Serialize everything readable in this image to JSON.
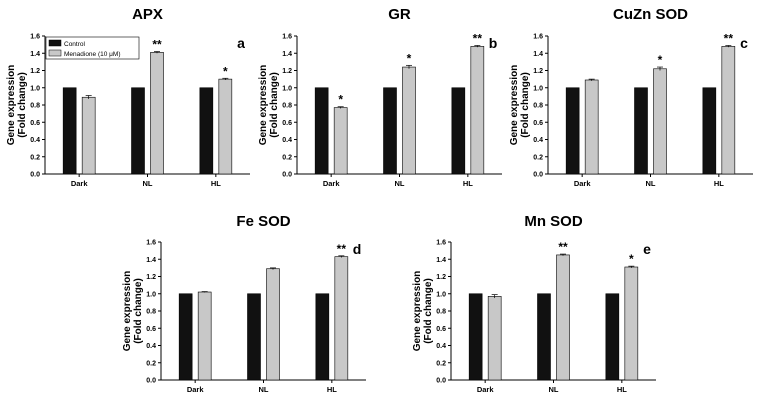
{
  "figure": {
    "ylabel_line1": "Gene expression",
    "ylabel_line2": "(Fold change)",
    "legend": {
      "control": "Control",
      "menadione": "Menadione (10 μM)"
    },
    "colors": {
      "control": "#111111",
      "menadione": "#c8c8c8",
      "axis": "#000000"
    }
  },
  "chart_data": [
    {
      "type": "bar",
      "title": "APX",
      "panel_label": "a",
      "categories": [
        "Dark",
        "NL",
        "HL"
      ],
      "series": [
        {
          "name": "Control",
          "values": [
            1.0,
            1.0,
            1.0
          ],
          "errors": [
            0,
            0,
            0
          ]
        },
        {
          "name": "Menadione (10 μM)",
          "values": [
            0.89,
            1.41,
            1.1
          ],
          "errors": [
            0.02,
            0.01,
            0.01
          ]
        }
      ],
      "significance": [
        "",
        "**",
        "*"
      ],
      "ylim": [
        0,
        1.6
      ],
      "yticks": [
        "0.0",
        "0.2",
        "0.4",
        "0.6",
        "0.8",
        "1.0",
        "1.2",
        "1.4",
        "1.6"
      ],
      "xlabel": "",
      "ylabel": "Gene expression (Fold change)",
      "legend": "top-left"
    },
    {
      "type": "bar",
      "title": "GR",
      "panel_label": "b",
      "categories": [
        "Dark",
        "NL",
        "HL"
      ],
      "series": [
        {
          "name": "Control",
          "values": [
            1.0,
            1.0,
            1.0
          ],
          "errors": [
            0,
            0,
            0
          ]
        },
        {
          "name": "Menadione (10 μM)",
          "values": [
            0.77,
            1.24,
            1.48
          ],
          "errors": [
            0.01,
            0.02,
            0.01
          ]
        }
      ],
      "significance": [
        "*",
        "*",
        "**"
      ],
      "ylim": [
        0,
        1.6
      ],
      "yticks": [
        "0.0",
        "0.2",
        "0.4",
        "0.6",
        "0.8",
        "1.0",
        "1.2",
        "1.4",
        "1.6"
      ],
      "xlabel": "",
      "ylabel": "Gene expression (Fold change)"
    },
    {
      "type": "bar",
      "title": "CuZn SOD",
      "panel_label": "c",
      "categories": [
        "Dark",
        "NL",
        "HL"
      ],
      "series": [
        {
          "name": "Control",
          "values": [
            1.0,
            1.0,
            1.0
          ],
          "errors": [
            0,
            0,
            0
          ]
        },
        {
          "name": "Menadione (10 μM)",
          "values": [
            1.09,
            1.22,
            1.48
          ],
          "errors": [
            0.01,
            0.02,
            0.01
          ]
        }
      ],
      "significance": [
        "",
        "*",
        "**"
      ],
      "ylim": [
        0,
        1.6
      ],
      "yticks": [
        "0.0",
        "0.2",
        "0.4",
        "0.6",
        "0.8",
        "1.0",
        "1.2",
        "1.4",
        "1.6"
      ],
      "xlabel": "",
      "ylabel": "Gene expression (Fold change)"
    },
    {
      "type": "bar",
      "title": "Fe SOD",
      "panel_label": "d",
      "categories": [
        "Dark",
        "NL",
        "HL"
      ],
      "series": [
        {
          "name": "Control",
          "values": [
            1.0,
            1.0,
            1.0
          ],
          "errors": [
            0,
            0,
            0
          ]
        },
        {
          "name": "Menadione (10 μM)",
          "values": [
            1.02,
            1.29,
            1.43
          ],
          "errors": [
            0.005,
            0.01,
            0.01
          ]
        }
      ],
      "significance": [
        "",
        "",
        "**"
      ],
      "ylim": [
        0,
        1.6
      ],
      "yticks": [
        "0.0",
        "0.2",
        "0.4",
        "0.6",
        "0.8",
        "1.0",
        "1.2",
        "1.4",
        "1.6"
      ],
      "xlabel": "",
      "ylabel": "Gene expression (Fold change)"
    },
    {
      "type": "bar",
      "title": "Mn SOD",
      "panel_label": "e",
      "categories": [
        "Dark",
        "NL",
        "HL"
      ],
      "series": [
        {
          "name": "Control",
          "values": [
            1.0,
            1.0,
            1.0
          ],
          "errors": [
            0,
            0,
            0
          ]
        },
        {
          "name": "Menadione (10 μM)",
          "values": [
            0.97,
            1.45,
            1.31
          ],
          "errors": [
            0.02,
            0.01,
            0.01
          ]
        }
      ],
      "significance": [
        "",
        "**",
        "*"
      ],
      "ylim": [
        0,
        1.6
      ],
      "yticks": [
        "0.0",
        "0.2",
        "0.4",
        "0.6",
        "0.8",
        "1.0",
        "1.2",
        "1.4",
        "1.6"
      ],
      "xlabel": "",
      "ylabel": "Gene expression (Fold change)"
    }
  ]
}
